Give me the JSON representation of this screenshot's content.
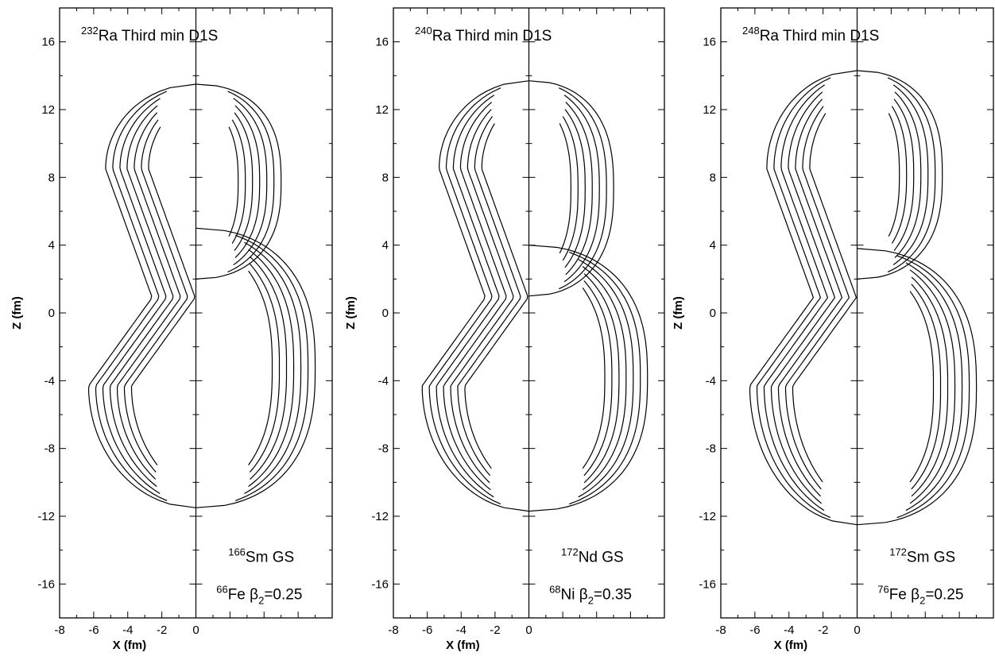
{
  "chart_data": [
    {
      "type": "contour",
      "title": {
        "sup": "232",
        "text": "Ra Third min D1S"
      },
      "ylabel": "Z (fm)",
      "xlabel": "X (fm)",
      "xlim": [
        -8,
        8
      ],
      "ylim": [
        -18,
        18
      ],
      "xticks": [
        "-8",
        "-6",
        "-4",
        "-2",
        "0"
      ],
      "yticks": [
        "16",
        "12",
        "8",
        "4",
        "0",
        "-4",
        "-8",
        "-12",
        "-16"
      ],
      "annotations": [
        {
          "sup": "166",
          "text": "Sm GS"
        },
        {
          "sup": "66",
          "text": "Fe β",
          "sub": "2",
          "suffix": "=0.25"
        }
      ],
      "left_fragment": {
        "levels": 7,
        "z_top": 13.5,
        "z_bottom": -11.5,
        "neck_z": 1.0
      },
      "right_upper_fragment": {
        "levels": 7,
        "z_top": 13.5,
        "z_bottom": 2.0
      },
      "right_lower_fragment": {
        "levels": 7,
        "z_top": 5.0,
        "z_bottom": -11.5
      }
    },
    {
      "type": "contour",
      "title": {
        "sup": "240",
        "text": "Ra Third min D1S"
      },
      "ylabel": "Z (fm)",
      "xlabel": "X (fm)",
      "xlim": [
        -8,
        8
      ],
      "ylim": [
        -18,
        18
      ],
      "xticks": [
        "-8",
        "-6",
        "-4",
        "-2",
        "0"
      ],
      "yticks": [
        "16",
        "12",
        "8",
        "4",
        "0",
        "-4",
        "-8",
        "-12",
        "-16"
      ],
      "annotations": [
        {
          "sup": "172",
          "text": "Nd GS"
        },
        {
          "sup": "68",
          "text": "Ni β",
          "sub": "2",
          "suffix": "=0.35"
        }
      ],
      "left_fragment": {
        "levels": 7,
        "z_top": 13.7,
        "z_bottom": -11.7,
        "neck_z": 1.0
      },
      "right_upper_fragment": {
        "levels": 7,
        "z_top": 13.7,
        "z_bottom": 1.0
      },
      "right_lower_fragment": {
        "levels": 7,
        "z_top": 4.0,
        "z_bottom": -11.7
      }
    },
    {
      "type": "contour",
      "title": {
        "sup": "248",
        "text": "Ra Third min D1S"
      },
      "ylabel": "Z (fm)",
      "xlabel": "X (fm)",
      "xlim": [
        -8,
        8
      ],
      "ylim": [
        -18,
        18
      ],
      "xticks": [
        "-8",
        "-6",
        "-4",
        "-2",
        "0"
      ],
      "yticks": [
        "16",
        "12",
        "8",
        "4",
        "0",
        "-4",
        "-8",
        "-12",
        "-16"
      ],
      "annotations": [
        {
          "sup": "172",
          "text": "Sm GS"
        },
        {
          "sup": "76",
          "text": "Fe β",
          "sub": "2",
          "suffix": "=0.25"
        }
      ],
      "left_fragment": {
        "levels": 7,
        "z_top": 14.3,
        "z_bottom": -12.5,
        "neck_z": 1.0
      },
      "right_upper_fragment": {
        "levels": 7,
        "z_top": 14.3,
        "z_bottom": 2.0
      },
      "right_lower_fragment": {
        "levels": 7,
        "z_top": 3.8,
        "z_bottom": -12.5
      }
    }
  ]
}
